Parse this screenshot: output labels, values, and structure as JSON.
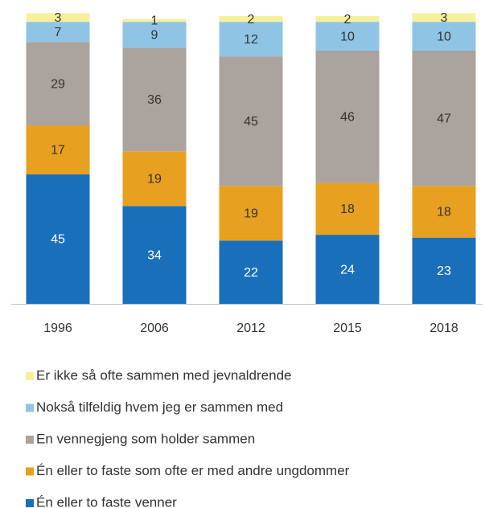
{
  "chart_data": {
    "type": "stacked_bar",
    "categories": [
      "1996",
      "2006",
      "2012",
      "2015",
      "2018"
    ],
    "series": [
      {
        "name": "Én eller to faste venner",
        "color": "#1a6fba",
        "label_color": "#ffffff",
        "values": [
          45,
          34,
          22,
          24,
          23
        ]
      },
      {
        "name": "Én eller to faste som ofte er med andre ungdommer",
        "color": "#e8a020",
        "label_color": "#333333",
        "values": [
          17,
          19,
          19,
          18,
          18
        ]
      },
      {
        "name": "En vennegjeng som holder sammen",
        "color": "#aba39d",
        "label_color": "#333333",
        "values": [
          29,
          36,
          45,
          46,
          47
        ]
      },
      {
        "name": "Nokså tilfeldig hvem jeg er sammen med",
        "color": "#8fc4e4",
        "label_color": "#333333",
        "values": [
          7,
          9,
          12,
          10,
          10
        ]
      },
      {
        "name": "Er ikke så ofte sammen med jevnaldrende",
        "color": "#f8ef9c",
        "label_color": "#333333",
        "values": [
          3,
          1,
          2,
          2,
          3
        ]
      }
    ]
  }
}
